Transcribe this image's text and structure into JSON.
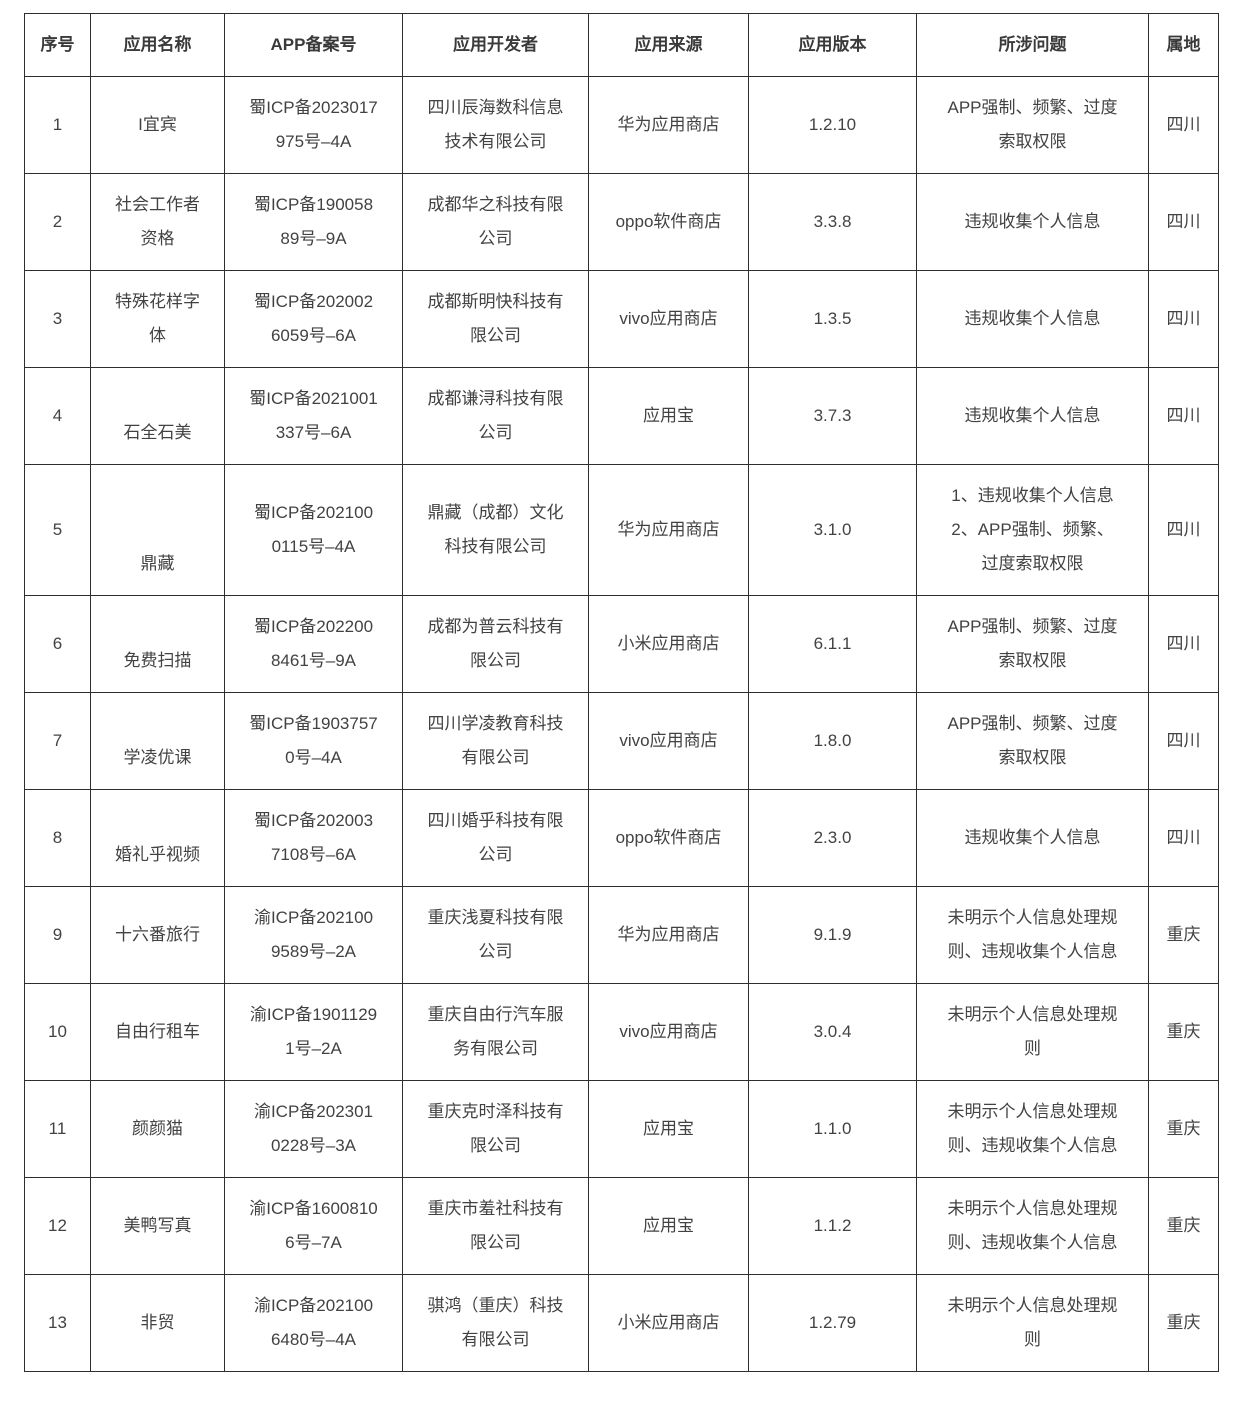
{
  "colors": {
    "border": "#2e2e2e",
    "header_text": "#3a3a3a",
    "body_text": "#424242",
    "background": "#ffffff"
  },
  "table": {
    "headers": [
      {
        "key": "index",
        "label": "序号"
      },
      {
        "key": "name",
        "label": "应用名称"
      },
      {
        "key": "reg",
        "label": "APP备案号"
      },
      {
        "key": "developer",
        "label": "应用开发者"
      },
      {
        "key": "source",
        "label": "应用来源"
      },
      {
        "key": "version",
        "label": "应用版本"
      },
      {
        "key": "issues",
        "label": "所涉问题"
      },
      {
        "key": "region",
        "label": "属地"
      }
    ],
    "rows": [
      {
        "index": "1",
        "name": "I宜宾",
        "reg": "蜀ICP备2023017\n975号–4A",
        "developer": "四川辰海数科信息\n技术有限公司",
        "source": "华为应用商店",
        "version": "1.2.10",
        "issues": "APP强制、频繁、过度\n索取权限",
        "region": "四川"
      },
      {
        "index": "2",
        "name": "社会工作者\n资格",
        "reg": "蜀ICP备190058\n89号–9A",
        "developer": "成都华之科技有限\n公司",
        "source": "oppo软件商店",
        "version": "3.3.8",
        "issues": "违规收集个人信息",
        "region": "四川"
      },
      {
        "index": "3",
        "name": "特殊花样字\n体",
        "reg": "蜀ICP备202002\n6059号–6A",
        "developer": "成都斯明快科技有\n限公司",
        "source": "vivo应用商店",
        "version": "1.3.5",
        "issues": "违规收集个人信息",
        "region": "四川"
      },
      {
        "index": "4",
        "name": "\n石全石美",
        "reg": "蜀ICP备2021001\n337号–6A",
        "developer": "成都谦浔科技有限\n公司",
        "source": "应用宝",
        "version": "3.7.3",
        "issues": "违规收集个人信息",
        "region": "四川"
      },
      {
        "index": "5",
        "name": "\n\n鼎藏",
        "reg": "蜀ICP备202100\n0115号–4A",
        "developer": "鼎藏（成都）文化\n科技有限公司",
        "source": "华为应用商店",
        "version": "3.1.0",
        "issues": "1、违规收集个人信息\n2、APP强制、频繁、\n过度索取权限",
        "region": "四川"
      },
      {
        "index": "6",
        "name": "\n免费扫描",
        "reg": "蜀ICP备202200\n8461号–9A",
        "developer": "成都为普云科技有\n限公司",
        "source": "小米应用商店",
        "version": "6.1.1",
        "issues": "APP强制、频繁、过度\n索取权限",
        "region": "四川"
      },
      {
        "index": "7",
        "name": "\n学凌优课",
        "reg": "蜀ICP备1903757\n0号–4A",
        "developer": "四川学凌教育科技\n有限公司",
        "source": "vivo应用商店",
        "version": "1.8.0",
        "issues": "APP强制、频繁、过度\n索取权限",
        "region": "四川"
      },
      {
        "index": "8",
        "name": "\n婚礼乎视频",
        "reg": "蜀ICP备202003\n7108号–6A",
        "developer": "四川婚乎科技有限\n公司",
        "source": "oppo软件商店",
        "version": "2.3.0",
        "issues": "违规收集个人信息",
        "region": "四川"
      },
      {
        "index": "9",
        "name": "十六番旅行",
        "reg": "渝ICP备202100\n9589号–2A",
        "developer": "重庆浅夏科技有限\n公司",
        "source": "华为应用商店",
        "version": "9.1.9",
        "issues": "未明示个人信息处理规\n则、违规收集个人信息",
        "region": "重庆"
      },
      {
        "index": "10",
        "name": "自由行租车",
        "reg": "渝ICP备1901129\n1号–2A",
        "developer": "重庆自由行汽车服\n务有限公司",
        "source": "vivo应用商店",
        "version": "3.0.4",
        "issues": "未明示个人信息处理规\n则",
        "region": "重庆"
      },
      {
        "index": "11",
        "name": "颜颜猫",
        "reg": "渝ICP备202301\n0228号–3A",
        "developer": "重庆克时泽科技有\n限公司",
        "source": "应用宝",
        "version": "1.1.0",
        "issues": "未明示个人信息处理规\n则、违规收集个人信息",
        "region": "重庆"
      },
      {
        "index": "12",
        "name": "美鸭写真",
        "reg": "渝ICP备1600810\n6号–7A",
        "developer": "重庆市羞社科技有\n限公司",
        "source": "应用宝",
        "version": "1.1.2",
        "issues": "未明示个人信息处理规\n则、违规收集个人信息",
        "region": "重庆"
      },
      {
        "index": "13",
        "name": "非贸",
        "reg": "渝ICP备202100\n6480号–4A",
        "developer": "骐鸿（重庆）科技\n有限公司",
        "source": "小米应用商店",
        "version": "1.2.79",
        "issues": "未明示个人信息处理规\n则",
        "region": "重庆"
      }
    ]
  }
}
